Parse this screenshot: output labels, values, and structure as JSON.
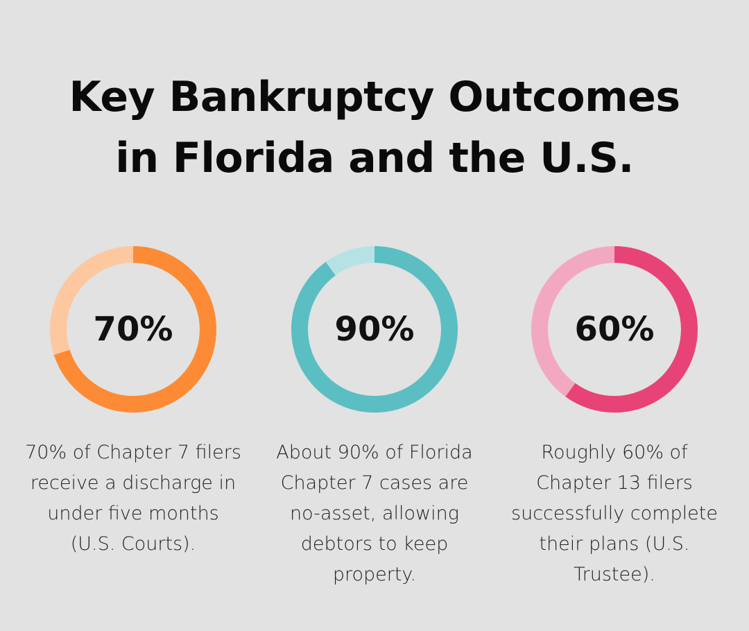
{
  "title_lines": [
    "Key Bankruptcy Outcomes",
    "in Florida and the U.S."
  ],
  "chart_data": [
    {
      "type": "pie",
      "variant": "donut",
      "value": 70,
      "max": 100,
      "label": "70%",
      "caption": "70% of Chapter 7 filers receive a discharge in under five months (U.S. Courts).",
      "colors": {
        "filled": "#fd8b35",
        "remainder": "#fdc8a0"
      }
    },
    {
      "type": "pie",
      "variant": "donut",
      "value": 90,
      "max": 100,
      "label": "90%",
      "caption": "About 90% of Florida Chapter 7 cases are no-asset, allowing debtors to keep property.",
      "colors": {
        "filled": "#5bbec3",
        "remainder": "#b7e2e5"
      }
    },
    {
      "type": "pie",
      "variant": "donut",
      "value": 60,
      "max": 100,
      "label": "60%",
      "caption": "Roughly 60% of Chapter 13 filers successfully complete their plans (U.S. Trustee).",
      "colors": {
        "filled": "#e84377",
        "remainder": "#f3a8c1"
      }
    }
  ]
}
